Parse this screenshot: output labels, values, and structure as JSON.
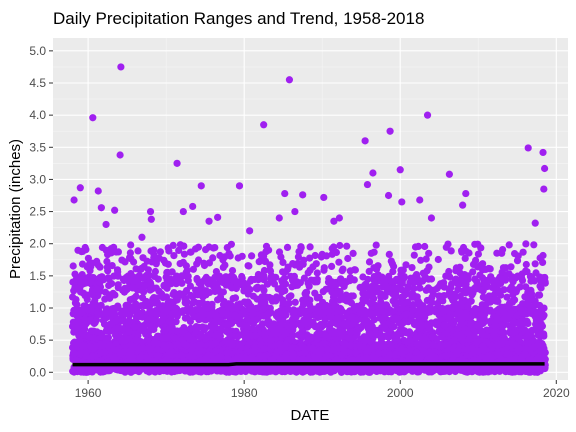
{
  "chart_data": {
    "type": "scatter",
    "title": "Daily Precipitation Ranges and Trend, 1958-2018",
    "xlabel": "DATE",
    "ylabel": "Precipitation (inches)",
    "xlim": [
      1955.5,
      2021.5
    ],
    "ylim": [
      -0.12,
      5.2
    ],
    "x_ticks": [
      {
        "value": 1960,
        "label": "1960"
      },
      {
        "value": 1980,
        "label": "1980"
      },
      {
        "value": 2000,
        "label": "2000"
      },
      {
        "value": 2020,
        "label": "2020"
      }
    ],
    "y_ticks": [
      {
        "value": 0.0,
        "label": "0.0"
      },
      {
        "value": 0.5,
        "label": "0.5"
      },
      {
        "value": 1.0,
        "label": "1.0"
      },
      {
        "value": 1.5,
        "label": "1.5"
      },
      {
        "value": 2.0,
        "label": "2.0"
      },
      {
        "value": 2.5,
        "label": "2.5"
      },
      {
        "value": 3.0,
        "label": "3.0"
      },
      {
        "value": 3.5,
        "label": "3.5"
      },
      {
        "value": 4.0,
        "label": "4.0"
      },
      {
        "value": 4.5,
        "label": "4.5"
      },
      {
        "value": 5.0,
        "label": "5.0"
      }
    ],
    "grid": true,
    "legend": "none",
    "series": [
      {
        "type": "scatter",
        "color": "#a020f0",
        "points": [
          {
            "x": 1958.2,
            "y": 2.68
          },
          {
            "x": 1959.0,
            "y": 2.87
          },
          {
            "x": 1959.3,
            "y": 1.88
          },
          {
            "x": 1960.6,
            "y": 3.96
          },
          {
            "x": 1961.3,
            "y": 2.82
          },
          {
            "x": 1961.7,
            "y": 2.56
          },
          {
            "x": 1962.3,
            "y": 2.3
          },
          {
            "x": 1963.4,
            "y": 2.52
          },
          {
            "x": 1963.6,
            "y": 1.87
          },
          {
            "x": 1964.2,
            "y": 4.75
          },
          {
            "x": 1964.1,
            "y": 3.38
          },
          {
            "x": 1966.9,
            "y": 2.1
          },
          {
            "x": 1968.0,
            "y": 2.5
          },
          {
            "x": 1968.1,
            "y": 2.38
          },
          {
            "x": 1971.4,
            "y": 3.25
          },
          {
            "x": 1972.2,
            "y": 2.5
          },
          {
            "x": 1973.4,
            "y": 2.58
          },
          {
            "x": 1974.5,
            "y": 2.9
          },
          {
            "x": 1975.5,
            "y": 2.35
          },
          {
            "x": 1976.6,
            "y": 2.41
          },
          {
            "x": 1979.4,
            "y": 2.9
          },
          {
            "x": 1980.7,
            "y": 2.2
          },
          {
            "x": 1982.5,
            "y": 3.85
          },
          {
            "x": 1984.5,
            "y": 2.4
          },
          {
            "x": 1985.2,
            "y": 2.78
          },
          {
            "x": 1985.8,
            "y": 4.55
          },
          {
            "x": 1986.5,
            "y": 2.5
          },
          {
            "x": 1987.5,
            "y": 2.76
          },
          {
            "x": 1990.2,
            "y": 2.72
          },
          {
            "x": 1991.5,
            "y": 2.35
          },
          {
            "x": 1992.2,
            "y": 2.4
          },
          {
            "x": 1995.5,
            "y": 3.6
          },
          {
            "x": 1995.8,
            "y": 2.92
          },
          {
            "x": 1996.5,
            "y": 3.1
          },
          {
            "x": 1998.7,
            "y": 3.75
          },
          {
            "x": 1998.5,
            "y": 2.75
          },
          {
            "x": 2000.0,
            "y": 3.15
          },
          {
            "x": 2000.2,
            "y": 2.65
          },
          {
            "x": 2002.5,
            "y": 2.68
          },
          {
            "x": 2003.5,
            "y": 4.0
          },
          {
            "x": 2004.0,
            "y": 2.4
          },
          {
            "x": 2006.3,
            "y": 3.08
          },
          {
            "x": 2008.4,
            "y": 2.78
          },
          {
            "x": 2008.0,
            "y": 2.6
          },
          {
            "x": 2016.4,
            "y": 3.49
          },
          {
            "x": 2017.3,
            "y": 2.32
          },
          {
            "x": 2018.3,
            "y": 3.42
          },
          {
            "x": 2018.5,
            "y": 3.17
          },
          {
            "x": 2018.4,
            "y": 2.85
          }
        ]
      },
      {
        "type": "line",
        "color": "#000000",
        "points": [
          {
            "x": 1958,
            "y": 0.12
          },
          {
            "x": 1978,
            "y": 0.12
          },
          {
            "x": 1979,
            "y": 0.13
          },
          {
            "x": 2018.5,
            "y": 0.13
          }
        ]
      }
    ]
  }
}
